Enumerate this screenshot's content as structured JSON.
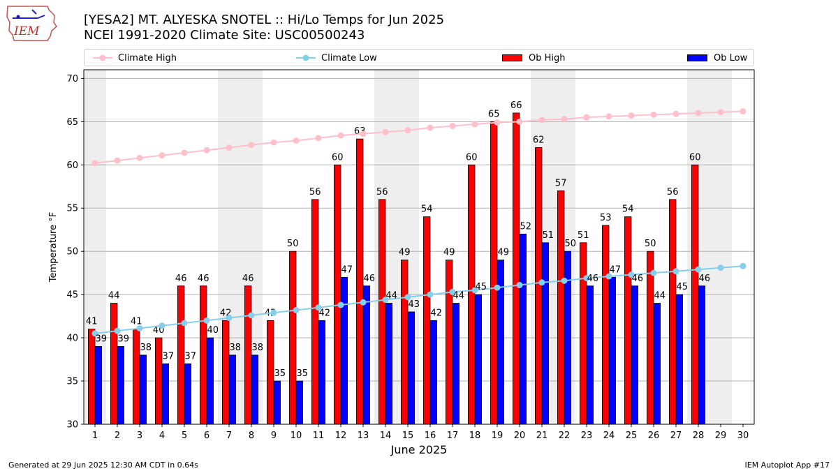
{
  "header": {
    "title_line1": "[YESA2] MT. ALYESKA SNOTEL :: Hi/Lo Temps for Jun 2025",
    "title_line2": "NCEI 1991-2020 Climate Site: USC00500243",
    "logo_text": "IEM"
  },
  "legend": {
    "climate_high": "Climate High",
    "climate_low": "Climate Low",
    "ob_high": "Ob High",
    "ob_low": "Ob Low"
  },
  "footer": {
    "left": "Generated at 29 Jun 2025 12:30 AM CDT in 0.64s",
    "right": "IEM Autoplot App #17"
  },
  "colors": {
    "ob_high": "#ff0000",
    "ob_low": "#0000ff",
    "climate_high": "#ffc0cb",
    "climate_low": "#87ceeb",
    "weekend_shade": "#eeeeee",
    "grid": "#b0b0b0"
  },
  "chart_data": {
    "type": "bar",
    "xlabel": "June 2025",
    "ylabel": "Temperature °F",
    "ylim": [
      30,
      71
    ],
    "yticks": [
      30,
      35,
      40,
      45,
      50,
      55,
      60,
      65,
      70
    ],
    "grid": "horizontal",
    "legend_position": "top",
    "categories": [
      1,
      2,
      3,
      4,
      5,
      6,
      7,
      8,
      9,
      10,
      11,
      12,
      13,
      14,
      15,
      16,
      17,
      18,
      19,
      20,
      21,
      22,
      23,
      24,
      25,
      26,
      27,
      28,
      29,
      30
    ],
    "shaded_days": [
      [
        1,
        1
      ],
      [
        7,
        8
      ],
      [
        14,
        15
      ],
      [
        21,
        22
      ],
      [
        28,
        29
      ]
    ],
    "series": [
      {
        "name": "Ob High",
        "kind": "bar",
        "values": [
          41,
          44,
          41,
          40,
          46,
          46,
          42,
          46,
          42,
          50,
          56,
          60,
          63,
          56,
          49,
          54,
          49,
          60,
          65,
          66,
          62,
          57,
          51,
          53,
          54,
          50,
          56,
          60,
          null,
          null
        ]
      },
      {
        "name": "Ob Low",
        "kind": "bar",
        "values": [
          39,
          39,
          38,
          37,
          37,
          40,
          38,
          38,
          35,
          35,
          42,
          47,
          46,
          44,
          43,
          42,
          44,
          45,
          49,
          52,
          51,
          50,
          46,
          47,
          46,
          44,
          45,
          46,
          null,
          null
        ]
      },
      {
        "name": "Climate High",
        "kind": "line",
        "values": [
          60.2,
          60.5,
          60.8,
          61.1,
          61.4,
          61.7,
          62.0,
          62.3,
          62.6,
          62.8,
          63.1,
          63.4,
          63.6,
          63.8,
          64.0,
          64.3,
          64.5,
          64.7,
          64.9,
          65.0,
          65.2,
          65.3,
          65.5,
          65.6,
          65.7,
          65.8,
          65.9,
          66.0,
          66.1,
          66.2
        ]
      },
      {
        "name": "Climate Low",
        "kind": "line",
        "values": [
          40.5,
          40.8,
          41.1,
          41.4,
          41.7,
          42.0,
          42.3,
          42.6,
          42.9,
          43.2,
          43.5,
          43.8,
          44.1,
          44.4,
          44.7,
          45.0,
          45.3,
          45.5,
          45.8,
          46.1,
          46.4,
          46.6,
          46.9,
          47.1,
          47.3,
          47.5,
          47.7,
          47.9,
          48.1,
          48.3
        ]
      }
    ]
  }
}
